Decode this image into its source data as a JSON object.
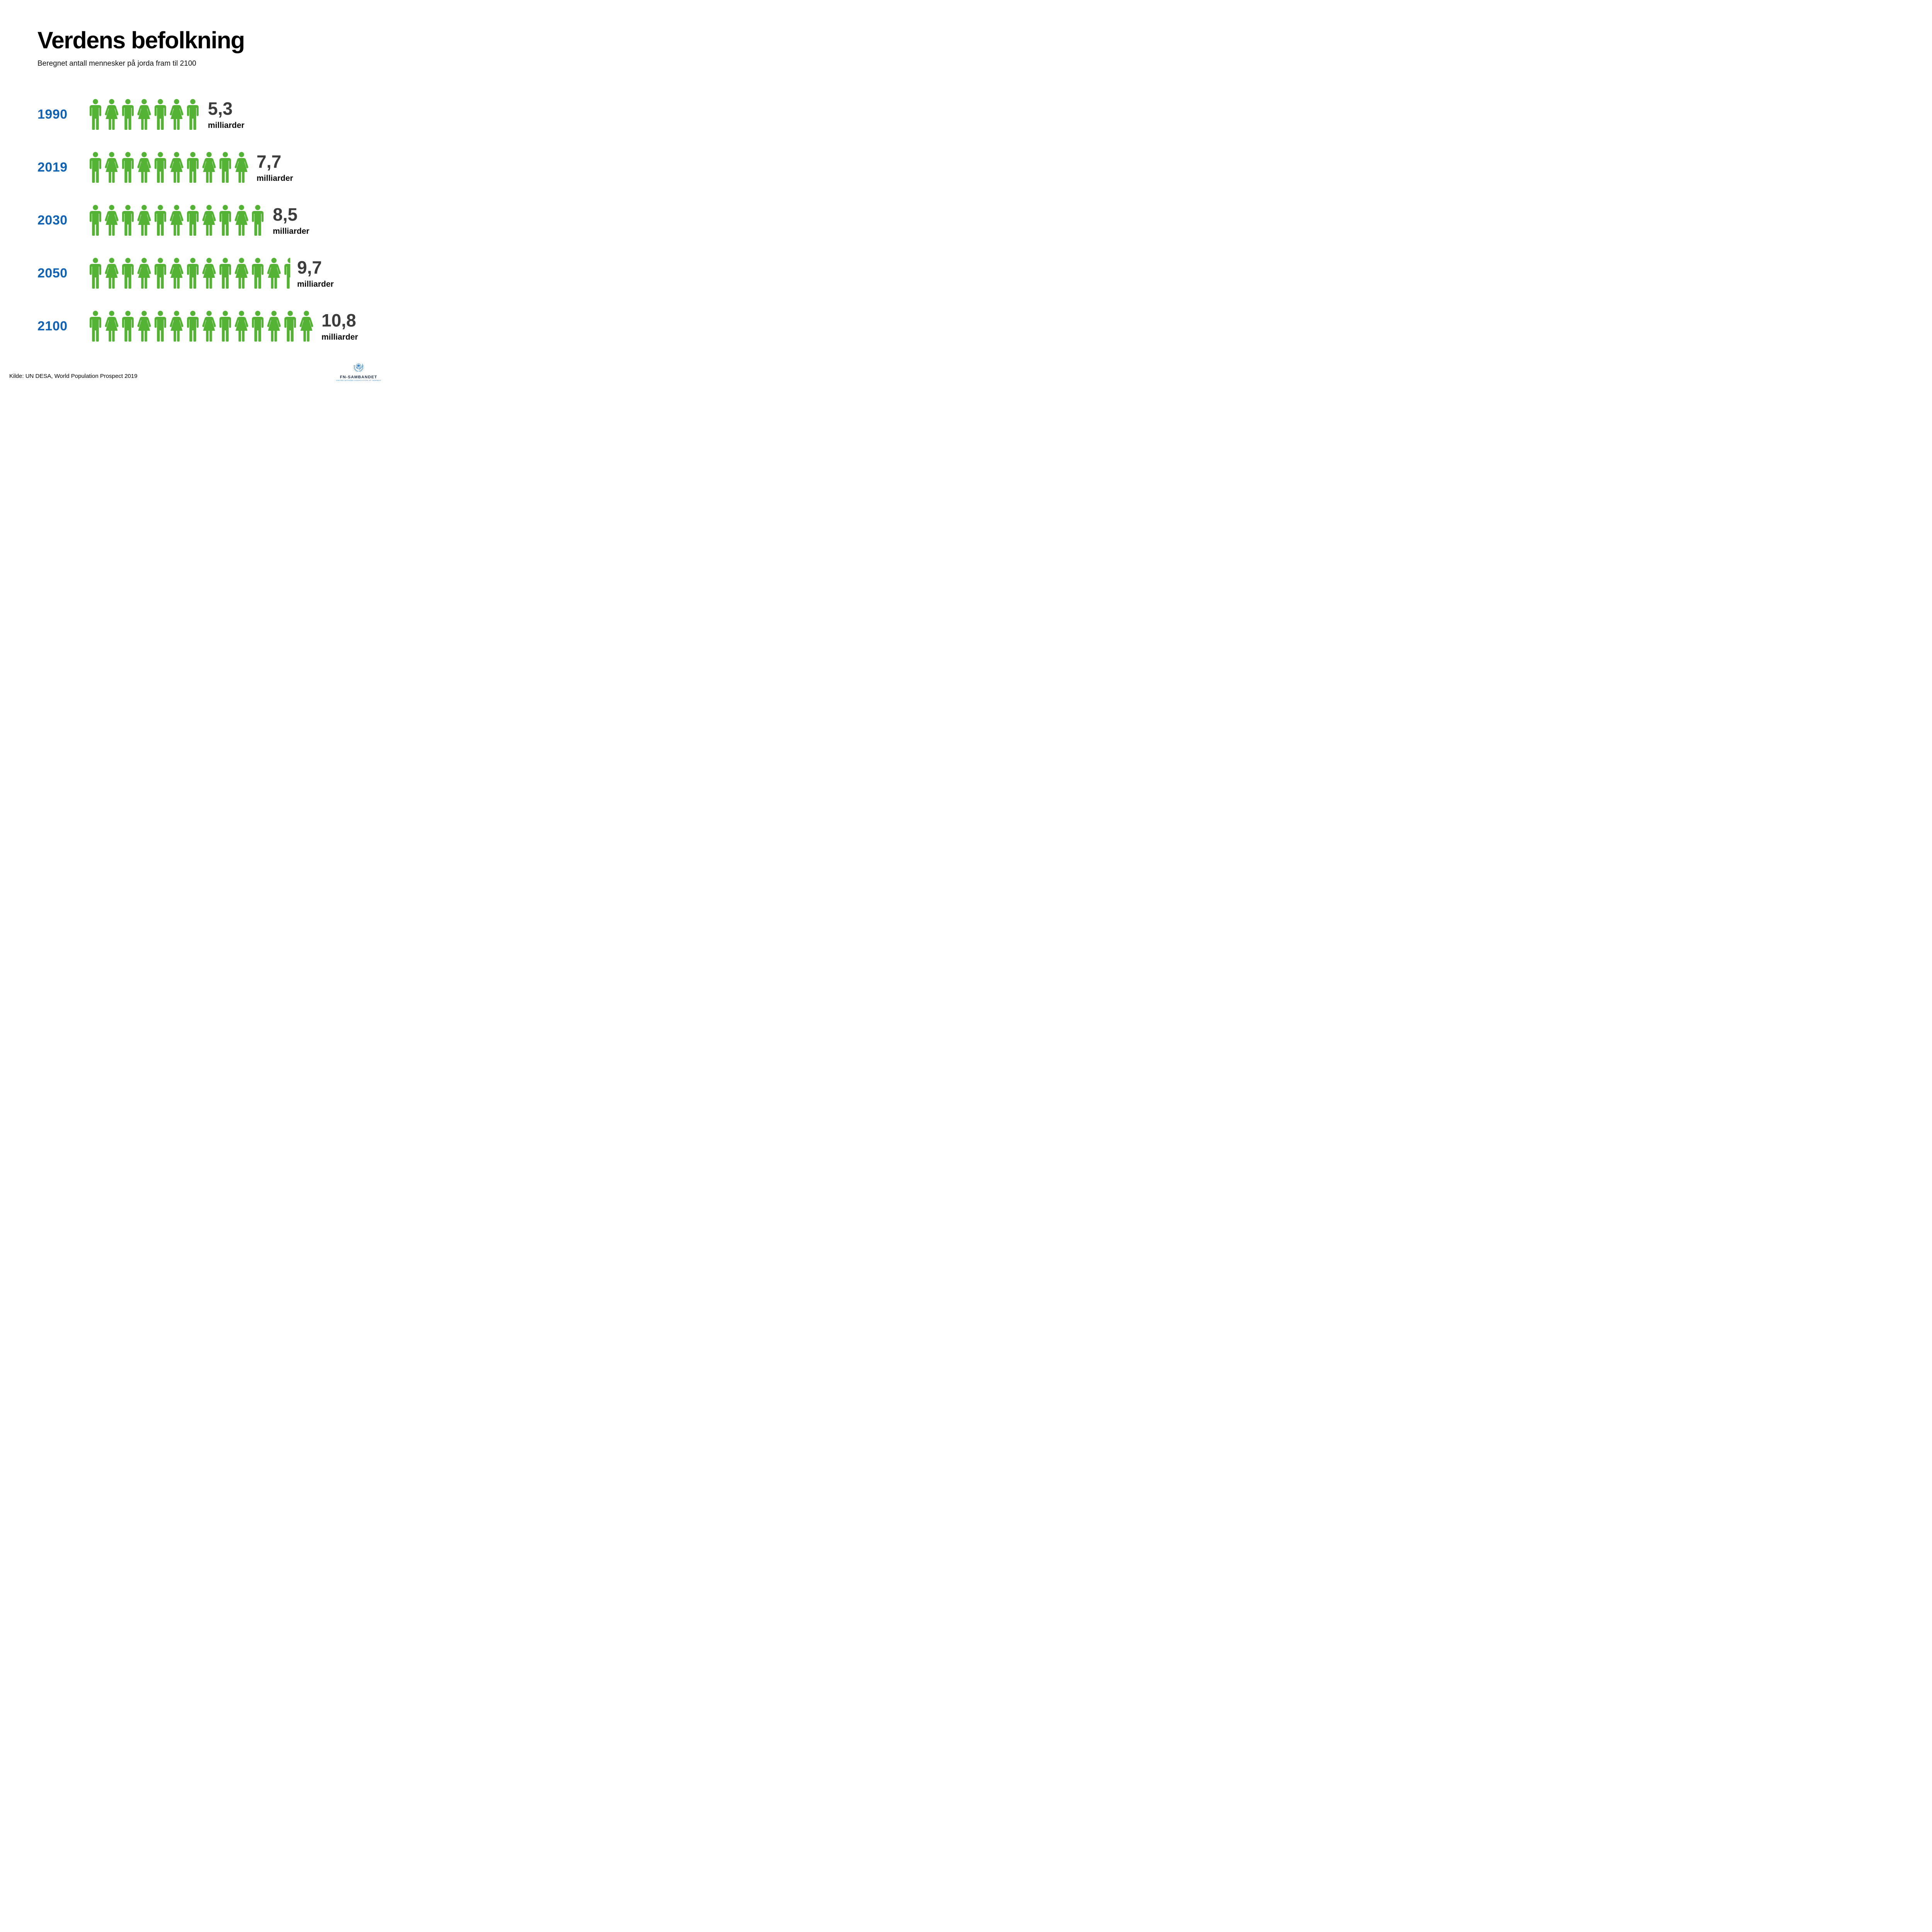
{
  "title": "Verdens befolkning",
  "subtitle": "Beregnet antall mennesker på jorda fram til 2100",
  "source": "Kilde: UN DESA, World Population Prospect 2019",
  "unit_label": "milliarder",
  "rows": [
    {
      "year": "1990",
      "value": "5,3",
      "unit": "milliarder",
      "icons": [
        "man",
        "woman",
        "man",
        "woman",
        "man",
        "woman",
        "man"
      ]
    },
    {
      "year": "2019",
      "value": "7,7",
      "unit": "milliarder",
      "icons": [
        "man",
        "woman",
        "man",
        "woman",
        "man",
        "woman",
        "man",
        "woman",
        "man",
        "woman"
      ]
    },
    {
      "year": "2030",
      "value": "8,5",
      "unit": "milliarder",
      "icons": [
        "man",
        "woman",
        "man",
        "woman",
        "man",
        "woman",
        "man",
        "woman",
        "man",
        "woman",
        "man"
      ]
    },
    {
      "year": "2050",
      "value": "9,7",
      "unit": "milliarder",
      "icons": [
        "man",
        "woman",
        "man",
        "woman",
        "man",
        "woman",
        "man",
        "woman",
        "man",
        "woman",
        "man",
        "woman",
        "man-half"
      ]
    },
    {
      "year": "2100",
      "value": "10,8",
      "unit": "milliarder",
      "icons": [
        "man",
        "woman",
        "man",
        "woman",
        "man",
        "woman",
        "man",
        "woman",
        "man",
        "woman",
        "man",
        "woman",
        "man",
        "woman"
      ]
    }
  ],
  "icon_key": {
    "man": "male-person-pictogram",
    "woman": "female-person-pictogram",
    "man-half": "half-male-person-pictogram",
    "emblem": "un-emblem"
  },
  "logo": {
    "org": "FN-SAMBANDET",
    "org_sub": "UNITED NATIONS ASSOCIATION OF NORWAY"
  },
  "colors": {
    "green": "#54B335",
    "blue": "#1062B5",
    "number_gray": "#3C3C3C",
    "black": "#0B0B0B",
    "logo_navy": "#22304A",
    "logo_blue": "#3F86C6"
  },
  "chart_data": {
    "type": "bar",
    "variant": "pictogram",
    "title": "Verdens befolkning",
    "subtitle": "Beregnet antall mennesker på jorda fram til 2100",
    "categories": [
      "1990",
      "2019",
      "2030",
      "2050",
      "2100"
    ],
    "values": [
      5.3,
      7.7,
      8.5,
      9.7,
      10.8
    ],
    "value_labels": [
      "5,3",
      "7,7",
      "8,5",
      "9,7",
      "10,8"
    ],
    "unit": "milliarder",
    "icon_counts": [
      7,
      10,
      11,
      12.5,
      14
    ],
    "icon_color": "#54B335",
    "category_color": "#1062B5",
    "orientation": "horizontal",
    "grid": false,
    "legend": false,
    "source": "Kilde: UN DESA, World Population Prospect 2019"
  }
}
